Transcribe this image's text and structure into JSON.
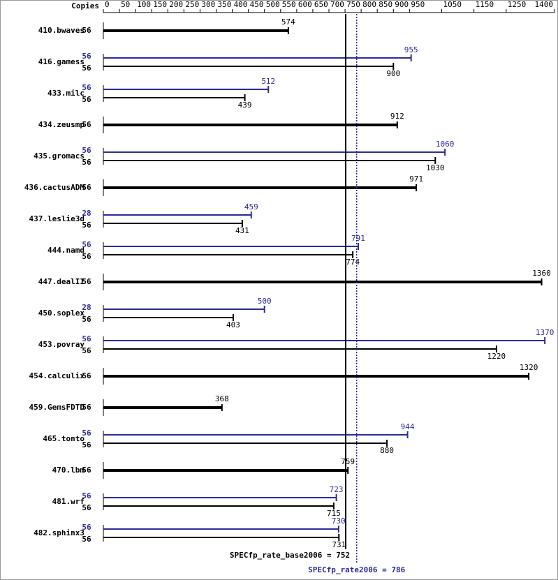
{
  "chart_data": {
    "type": "bar",
    "axis_label": "Copies",
    "categories": [
      "410.bwaves",
      "416.gamess",
      "433.milc",
      "434.zeusmp",
      "435.gromacs",
      "436.cactusADM",
      "437.leslie3d",
      "444.namd",
      "447.dealII",
      "450.soplex",
      "453.povray",
      "454.calculix",
      "459.GemsFDTD",
      "465.tonto",
      "470.lbm",
      "481.wrf",
      "482.sphinx3"
    ],
    "series": [
      {
        "color": "#000000",
        "copies": [
          56,
          56,
          56,
          56,
          56,
          56,
          56,
          56,
          56,
          56,
          56,
          56,
          56,
          56,
          56,
          56,
          56
        ],
        "values": [
          574,
          900,
          439,
          912,
          1030,
          971,
          431,
          774,
          1360,
          403,
          1220,
          1320,
          368,
          880,
          759,
          715,
          731
        ]
      },
      {
        "color": "#2b2b9b",
        "copies": [
          null,
          56,
          56,
          null,
          56,
          null,
          28,
          56,
          null,
          28,
          56,
          null,
          null,
          56,
          null,
          56,
          56
        ],
        "values": [
          null,
          955,
          512,
          null,
          1060,
          null,
          459,
          791,
          null,
          500,
          1370,
          null,
          null,
          944,
          null,
          723,
          730
        ]
      }
    ],
    "xlim": [
      0,
      1400
    ],
    "xticks": [
      0,
      50,
      100,
      150,
      200,
      250,
      300,
      350,
      400,
      450,
      500,
      550,
      600,
      650,
      700,
      750,
      800,
      850,
      900,
      950,
      1050,
      1150,
      1250,
      1400
    ],
    "reference_lines": [
      {
        "value": 752,
        "label": "SPECfp_rate_base2006 = 752",
        "color": "#000000",
        "style": "solid"
      },
      {
        "value": 786,
        "label": "SPECfp_rate2006 = 786",
        "color": "#2b2b9b",
        "style": "dotted"
      }
    ]
  }
}
